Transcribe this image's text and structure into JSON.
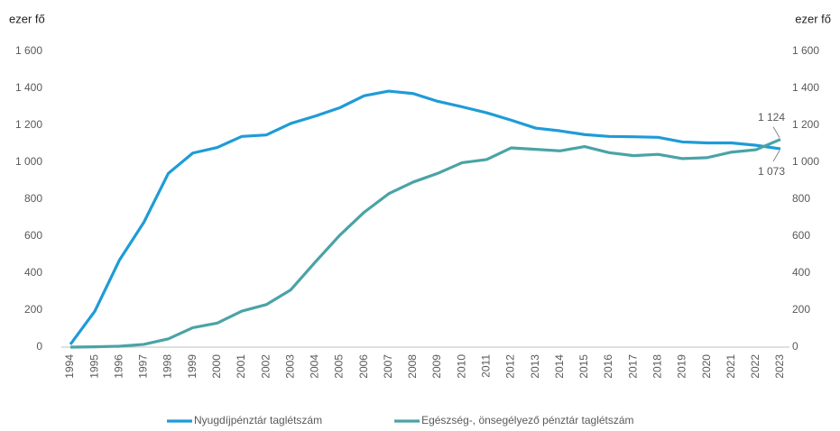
{
  "chart_data": {
    "type": "line",
    "y_label": "ezer fő",
    "y2_label": "ezer fő",
    "categories": [
      "1994",
      "1995",
      "1996",
      "1997",
      "1998",
      "1999",
      "2000",
      "2001",
      "2002",
      "2003",
      "2004",
      "2005",
      "2006",
      "2007",
      "2008",
      "2009",
      "2010",
      "2011",
      "2012",
      "2013",
      "2014",
      "2015",
      "2016",
      "2017",
      "2018",
      "2019",
      "2020",
      "2021",
      "2022",
      "2023"
    ],
    "series": [
      {
        "name": "Nyugdíjpénztár taglétszám",
        "color": "#1f9bd7",
        "values": [
          15,
          195,
          470,
          675,
          940,
          1050,
          1080,
          1140,
          1148,
          1210,
          1250,
          1295,
          1360,
          1385,
          1372,
          1330,
          1300,
          1268,
          1228,
          1185,
          1170,
          1150,
          1140,
          1138,
          1135,
          1110,
          1105,
          1105,
          1092,
          1073
        ]
      },
      {
        "name": "Egészség-, önsegélyező pénztár taglétszám",
        "color": "#4aa3a6",
        "values": [
          0,
          2,
          5,
          15,
          45,
          105,
          130,
          195,
          230,
          310,
          460,
          605,
          730,
          830,
          893,
          940,
          998,
          1015,
          1078,
          1070,
          1062,
          1085,
          1052,
          1036,
          1043,
          1020,
          1025,
          1055,
          1068,
          1124
        ]
      }
    ],
    "annotations": [
      "1 124",
      "1 073"
    ],
    "ylim": [
      0,
      1600
    ],
    "yticks": [
      0,
      200,
      400,
      600,
      800,
      {
        "value": 1000,
        "label": "1 000"
      },
      {
        "value": 1200,
        "label": "1 200"
      },
      {
        "value": 1400,
        "label": "1 400"
      },
      {
        "value": 1600,
        "label": "1 600"
      }
    ],
    "y2lim": [
      0,
      1600
    ],
    "y2ticks": [
      0,
      200,
      400,
      600,
      800,
      {
        "value": 1000,
        "label": "1 000"
      },
      {
        "value": 1200,
        "label": "1 200"
      },
      {
        "value": 1400,
        "label": "1 400"
      },
      {
        "value": 1600,
        "label": "1 600"
      }
    ],
    "legend": "bottom",
    "grid": false
  }
}
